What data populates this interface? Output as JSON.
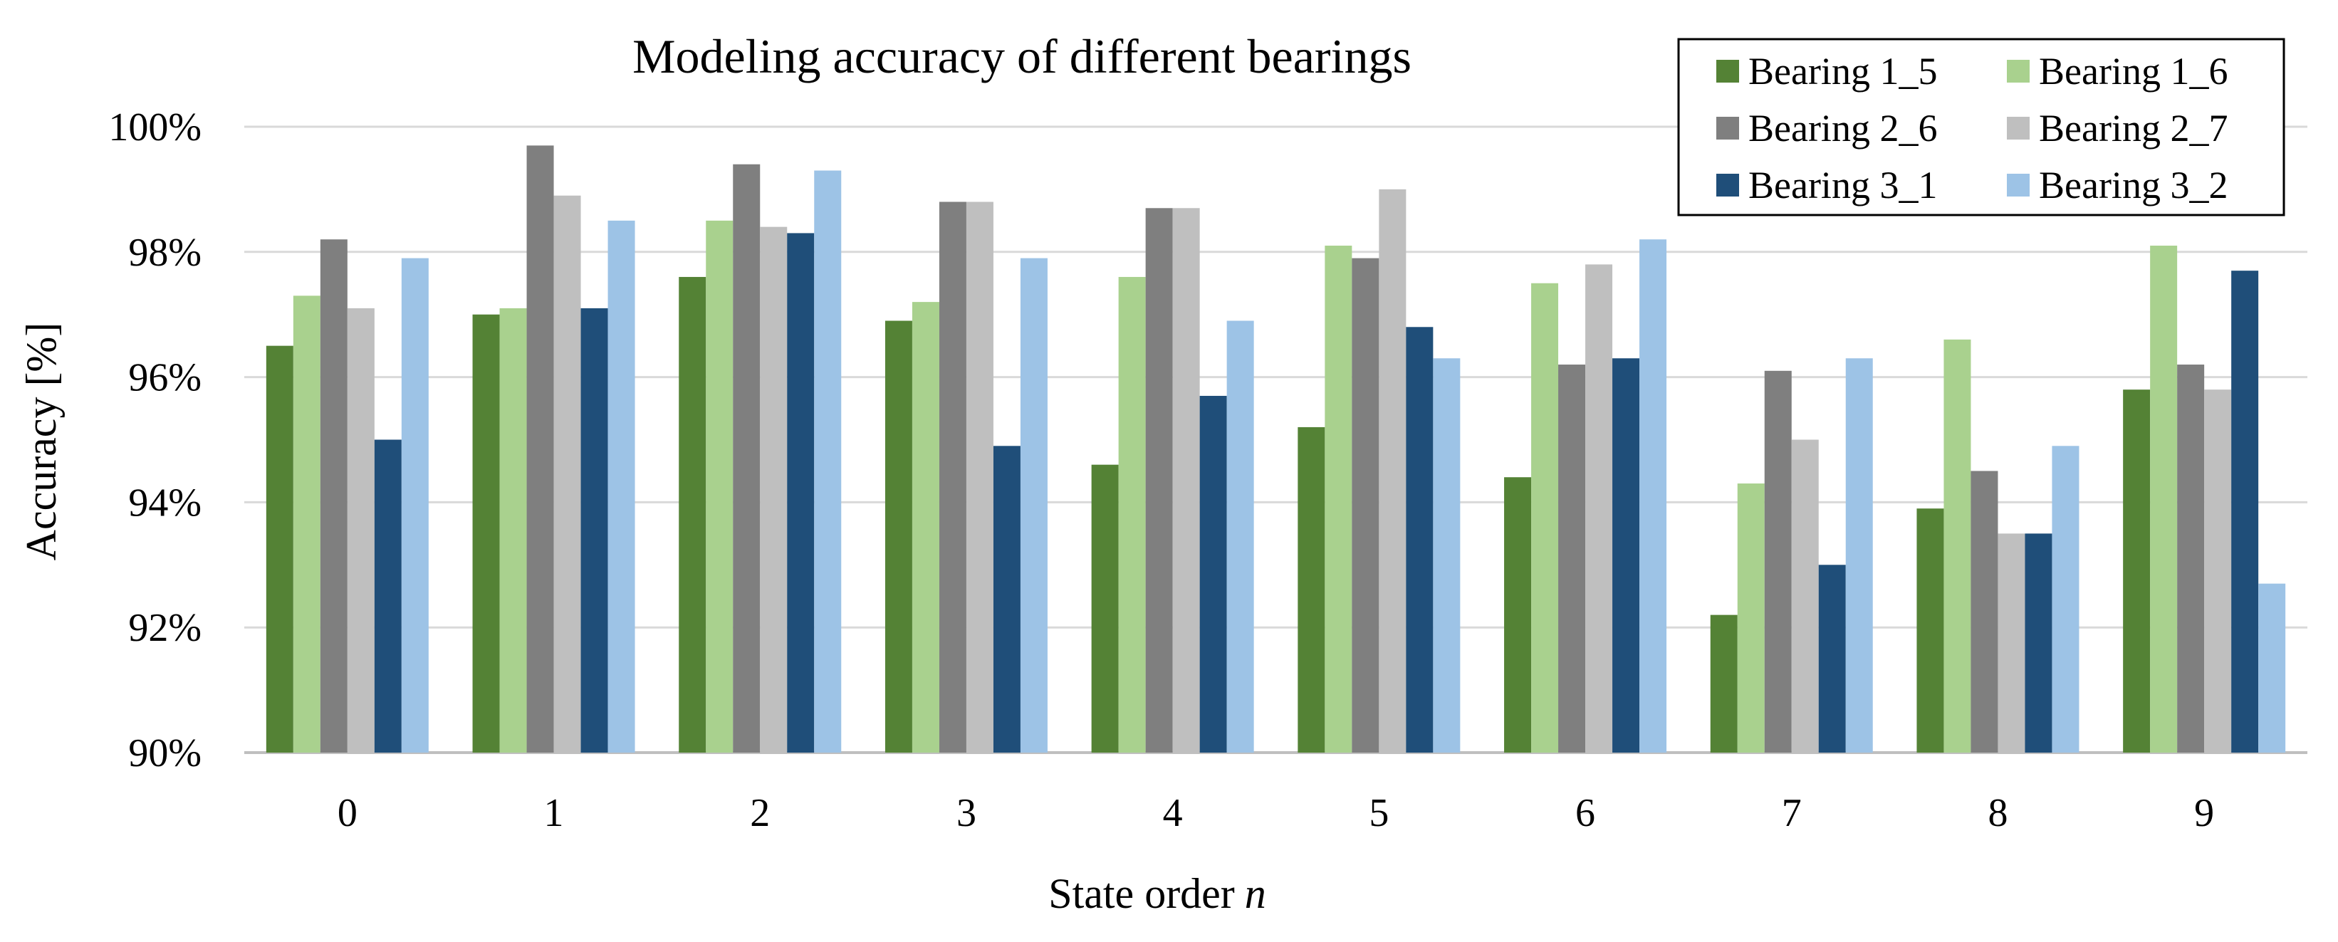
{
  "chart_data": {
    "type": "bar",
    "title": "Modeling accuracy of different bearings",
    "xlabel": "State order",
    "xlabel_var": "n",
    "ylabel": "Accuracy [%]",
    "ylim": [
      90,
      100
    ],
    "yticks": [
      90,
      92,
      94,
      96,
      98,
      100
    ],
    "ytick_labels": [
      "90%",
      "92%",
      "94%",
      "96%",
      "98%",
      "100%"
    ],
    "grid": true,
    "legend_position": "top-right",
    "categories": [
      "0",
      "1",
      "2",
      "3",
      "4",
      "5",
      "6",
      "7",
      "8",
      "9"
    ],
    "series": [
      {
        "name": "Bearing 1_5",
        "color": "#548235",
        "values": [
          96.5,
          97.0,
          97.6,
          96.9,
          94.6,
          95.2,
          94.4,
          92.2,
          93.9,
          95.8
        ]
      },
      {
        "name": "Bearing 1_6",
        "color": "#a9d18e",
        "values": [
          97.3,
          97.1,
          98.5,
          97.2,
          97.6,
          98.1,
          97.5,
          94.3,
          96.6,
          98.1
        ]
      },
      {
        "name": "Bearing 2_6",
        "color": "#7f7f7f",
        "values": [
          98.2,
          99.7,
          99.4,
          98.8,
          98.7,
          97.9,
          96.2,
          96.1,
          94.5,
          96.2
        ]
      },
      {
        "name": "Bearing 2_7",
        "color": "#bfbfbf",
        "values": [
          97.1,
          98.9,
          98.4,
          98.8,
          98.7,
          99.0,
          97.8,
          95.0,
          93.5,
          95.8
        ]
      },
      {
        "name": "Bearing 3_1",
        "color": "#1f4e79",
        "values": [
          95.0,
          97.1,
          98.3,
          94.9,
          95.7,
          96.8,
          96.3,
          93.0,
          93.5,
          97.7
        ]
      },
      {
        "name": "Bearing 3_2",
        "color": "#9dc3e6",
        "values": [
          97.9,
          98.5,
          99.3,
          97.9,
          96.9,
          96.3,
          98.2,
          96.3,
          94.9,
          92.7
        ]
      }
    ]
  }
}
